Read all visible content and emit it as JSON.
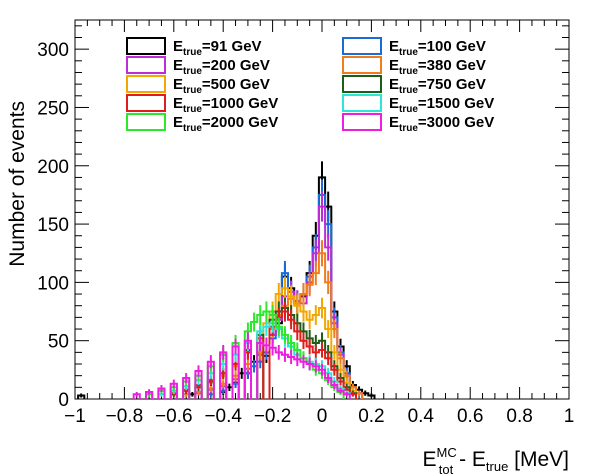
{
  "chart_data": {
    "type": "line",
    "style": "step-histogram-with-error-bars",
    "xlabel_main": "E",
    "xlabel_sup": "MC",
    "xlabel_sub": "tot",
    "xlabel_tail": " - E",
    "xlabel_sub2": "true",
    "xlabel_unit": " [MeV]",
    "ylabel": "Number of events",
    "xlim": [
      -1,
      1
    ],
    "ylim": [
      0,
      325
    ],
    "x_ticks": [
      -1,
      -0.8,
      -0.6,
      -0.4,
      -0.2,
      0,
      0.2,
      0.4,
      0.6,
      0.8,
      1
    ],
    "x_tick_labels": [
      "−1",
      "−0.8",
      "−0.6",
      "−0.4",
      "−0.2",
      "0",
      "0.2",
      "0.4",
      "0.6",
      "0.8",
      "1"
    ],
    "y_ticks": [
      0,
      50,
      100,
      150,
      200,
      250,
      300
    ],
    "y_tick_labels": [
      "0",
      "50",
      "100",
      "150",
      "200",
      "250",
      "300"
    ],
    "bin_width": 0.025,
    "legend_position": "top",
    "legend_prefix": "E",
    "legend_sub": "true",
    "series": [
      {
        "name": "91 GeV",
        "color": "#000000",
        "values": [
          [
            -0.975,
            3
          ],
          [
            -0.525,
            4
          ],
          [
            -0.4,
            6
          ],
          [
            -0.375,
            10
          ],
          [
            -0.35,
            14
          ],
          [
            -0.325,
            22
          ],
          [
            -0.3,
            22
          ],
          [
            -0.275,
            32
          ],
          [
            -0.25,
            38
          ],
          [
            -0.225,
            37
          ],
          [
            -0.2,
            55
          ],
          [
            -0.175,
            65
          ],
          [
            -0.15,
            105
          ],
          [
            -0.125,
            95
          ],
          [
            -0.1,
            82
          ],
          [
            -0.075,
            88
          ],
          [
            -0.05,
            108
          ],
          [
            -0.025,
            140
          ],
          [
            0.0,
            190
          ],
          [
            0.025,
            165
          ],
          [
            0.05,
            75
          ],
          [
            0.075,
            45
          ],
          [
            0.1,
            28
          ],
          [
            0.125,
            12
          ],
          [
            0.15,
            8
          ],
          [
            0.175,
            5
          ],
          [
            0.2,
            3
          ]
        ]
      },
      {
        "name": "100 GeV",
        "color": "#1a6bd8",
        "values": [
          [
            -0.45,
            4
          ],
          [
            -0.4,
            7
          ],
          [
            -0.35,
            13
          ],
          [
            -0.3,
            22
          ],
          [
            -0.275,
            28
          ],
          [
            -0.25,
            32
          ],
          [
            -0.225,
            40
          ],
          [
            -0.2,
            52
          ],
          [
            -0.175,
            70
          ],
          [
            -0.15,
            108
          ],
          [
            -0.125,
            92
          ],
          [
            -0.1,
            84
          ],
          [
            -0.075,
            90
          ],
          [
            -0.05,
            105
          ],
          [
            -0.025,
            130
          ],
          [
            0.0,
            175
          ],
          [
            0.025,
            150
          ],
          [
            0.05,
            70
          ],
          [
            0.075,
            40
          ],
          [
            0.1,
            22
          ],
          [
            0.125,
            10
          ],
          [
            0.15,
            5
          ]
        ]
      },
      {
        "name": "200 GeV",
        "color": "#c02bd8",
        "values": [
          [
            -0.5,
            5
          ],
          [
            -0.45,
            8
          ],
          [
            -0.4,
            11
          ],
          [
            -0.35,
            17
          ],
          [
            -0.3,
            26
          ],
          [
            -0.25,
            38
          ],
          [
            -0.2,
            55
          ],
          [
            -0.175,
            68
          ],
          [
            -0.15,
            88
          ],
          [
            -0.125,
            92
          ],
          [
            -0.1,
            84
          ],
          [
            -0.075,
            82
          ],
          [
            -0.05,
            100
          ],
          [
            -0.025,
            125
          ],
          [
            0.0,
            165
          ],
          [
            0.025,
            130
          ],
          [
            0.05,
            65
          ],
          [
            0.075,
            38
          ],
          [
            0.1,
            20
          ],
          [
            0.125,
            10
          ],
          [
            0.15,
            5
          ]
        ]
      },
      {
        "name": "380 GeV",
        "color": "#f07c1e",
        "values": [
          [
            -0.55,
            4
          ],
          [
            -0.5,
            6
          ],
          [
            -0.45,
            9
          ],
          [
            -0.4,
            13
          ],
          [
            -0.35,
            20
          ],
          [
            -0.3,
            30
          ],
          [
            -0.25,
            40
          ],
          [
            -0.2,
            60
          ],
          [
            -0.175,
            72
          ],
          [
            -0.15,
            80
          ],
          [
            -0.125,
            86
          ],
          [
            -0.1,
            82
          ],
          [
            -0.075,
            90
          ],
          [
            -0.05,
            98
          ],
          [
            -0.025,
            108
          ],
          [
            0.0,
            125
          ],
          [
            0.025,
            100
          ],
          [
            0.05,
            60
          ],
          [
            0.075,
            35
          ],
          [
            0.1,
            20
          ],
          [
            0.125,
            10
          ],
          [
            0.15,
            5
          ]
        ]
      },
      {
        "name": "500 GeV",
        "color": "#f2a800",
        "values": [
          [
            -0.6,
            4
          ],
          [
            -0.55,
            7
          ],
          [
            -0.5,
            10
          ],
          [
            -0.45,
            14
          ],
          [
            -0.4,
            20
          ],
          [
            -0.35,
            28
          ],
          [
            -0.3,
            40
          ],
          [
            -0.25,
            55
          ],
          [
            -0.225,
            65
          ],
          [
            -0.2,
            75
          ],
          [
            -0.175,
            90
          ],
          [
            -0.15,
            95
          ],
          [
            -0.125,
            88
          ],
          [
            -0.1,
            80
          ],
          [
            -0.075,
            75
          ],
          [
            -0.05,
            68
          ],
          [
            -0.025,
            72
          ],
          [
            0.0,
            78
          ],
          [
            0.025,
            60
          ],
          [
            0.05,
            40
          ],
          [
            0.075,
            25
          ],
          [
            0.1,
            14
          ],
          [
            0.125,
            7
          ]
        ]
      },
      {
        "name": "750 GeV",
        "color": "#1d5e16",
        "values": [
          [
            -0.6,
            4
          ],
          [
            -0.55,
            7
          ],
          [
            -0.5,
            10
          ],
          [
            -0.45,
            15
          ],
          [
            -0.4,
            22
          ],
          [
            -0.35,
            30
          ],
          [
            -0.3,
            42
          ],
          [
            -0.25,
            55
          ],
          [
            -0.2,
            68
          ],
          [
            -0.175,
            75
          ],
          [
            -0.15,
            78
          ],
          [
            -0.125,
            72
          ],
          [
            -0.1,
            65
          ],
          [
            -0.075,
            58
          ],
          [
            -0.05,
            52
          ],
          [
            -0.025,
            48
          ],
          [
            0.0,
            50
          ],
          [
            0.025,
            40
          ],
          [
            0.05,
            28
          ],
          [
            0.075,
            18
          ],
          [
            0.1,
            10
          ],
          [
            0.125,
            5
          ]
        ]
      },
      {
        "name": "1000 GeV",
        "color": "#e01c1c",
        "values": [
          [
            -0.6,
            5
          ],
          [
            -0.55,
            8
          ],
          [
            -0.5,
            12
          ],
          [
            -0.45,
            16
          ],
          [
            -0.4,
            22
          ],
          [
            -0.35,
            30
          ],
          [
            -0.3,
            40
          ],
          [
            -0.25,
            52
          ],
          [
            -0.2,
            62
          ],
          [
            -0.175,
            70
          ],
          [
            -0.15,
            75
          ],
          [
            -0.125,
            68
          ],
          [
            -0.1,
            58
          ],
          [
            -0.075,
            50
          ],
          [
            -0.05,
            45
          ],
          [
            -0.025,
            40
          ],
          [
            0.0,
            42
          ],
          [
            0.025,
            35
          ],
          [
            0.05,
            25
          ],
          [
            0.075,
            15
          ],
          [
            0.1,
            8
          ],
          [
            0.125,
            4
          ]
        ]
      },
      {
        "name": "1500 GeV",
        "color": "#2ee6d6",
        "values": [
          [
            -0.65,
            4
          ],
          [
            -0.6,
            7
          ],
          [
            -0.55,
            11
          ],
          [
            -0.5,
            16
          ],
          [
            -0.45,
            22
          ],
          [
            -0.4,
            30
          ],
          [
            -0.35,
            38
          ],
          [
            -0.3,
            48
          ],
          [
            -0.25,
            58
          ],
          [
            -0.225,
            62
          ],
          [
            -0.2,
            65
          ],
          [
            -0.175,
            60
          ],
          [
            -0.15,
            52
          ],
          [
            -0.125,
            45
          ],
          [
            -0.1,
            38
          ],
          [
            -0.075,
            35
          ],
          [
            -0.05,
            32
          ],
          [
            -0.025,
            30
          ],
          [
            0.0,
            28
          ],
          [
            0.025,
            22
          ],
          [
            0.05,
            15
          ],
          [
            0.075,
            9
          ],
          [
            0.1,
            5
          ]
        ]
      },
      {
        "name": "2000 GeV",
        "color": "#2be82b",
        "values": [
          [
            -0.7,
            4
          ],
          [
            -0.65,
            7
          ],
          [
            -0.6,
            10
          ],
          [
            -0.55,
            15
          ],
          [
            -0.5,
            20
          ],
          [
            -0.45,
            28
          ],
          [
            -0.4,
            38
          ],
          [
            -0.35,
            48
          ],
          [
            -0.3,
            58
          ],
          [
            -0.275,
            66
          ],
          [
            -0.25,
            72
          ],
          [
            -0.225,
            75
          ],
          [
            -0.2,
            72
          ],
          [
            -0.175,
            62
          ],
          [
            -0.15,
            55
          ],
          [
            -0.125,
            48
          ],
          [
            -0.1,
            42
          ],
          [
            -0.075,
            35
          ],
          [
            -0.05,
            30
          ],
          [
            -0.025,
            25
          ],
          [
            0.0,
            22
          ],
          [
            0.025,
            16
          ],
          [
            0.05,
            10
          ],
          [
            0.075,
            6
          ]
        ]
      },
      {
        "name": "3000 GeV",
        "color": "#ee1ee0",
        "values": [
          [
            -0.75,
            4
          ],
          [
            -0.7,
            6
          ],
          [
            -0.65,
            9
          ],
          [
            -0.6,
            13
          ],
          [
            -0.55,
            18
          ],
          [
            -0.5,
            24
          ],
          [
            -0.45,
            32
          ],
          [
            -0.4,
            40
          ],
          [
            -0.35,
            45
          ],
          [
            -0.3,
            50
          ],
          [
            -0.25,
            48
          ],
          [
            -0.225,
            46
          ],
          [
            -0.2,
            44
          ],
          [
            -0.175,
            40
          ],
          [
            -0.15,
            38
          ],
          [
            -0.125,
            36
          ],
          [
            -0.1,
            34
          ],
          [
            -0.075,
            32
          ],
          [
            -0.05,
            30
          ],
          [
            -0.025,
            28
          ],
          [
            0.0,
            25
          ],
          [
            0.025,
            18
          ],
          [
            0.05,
            12
          ],
          [
            0.075,
            7
          ],
          [
            0.1,
            4
          ]
        ]
      }
    ]
  }
}
